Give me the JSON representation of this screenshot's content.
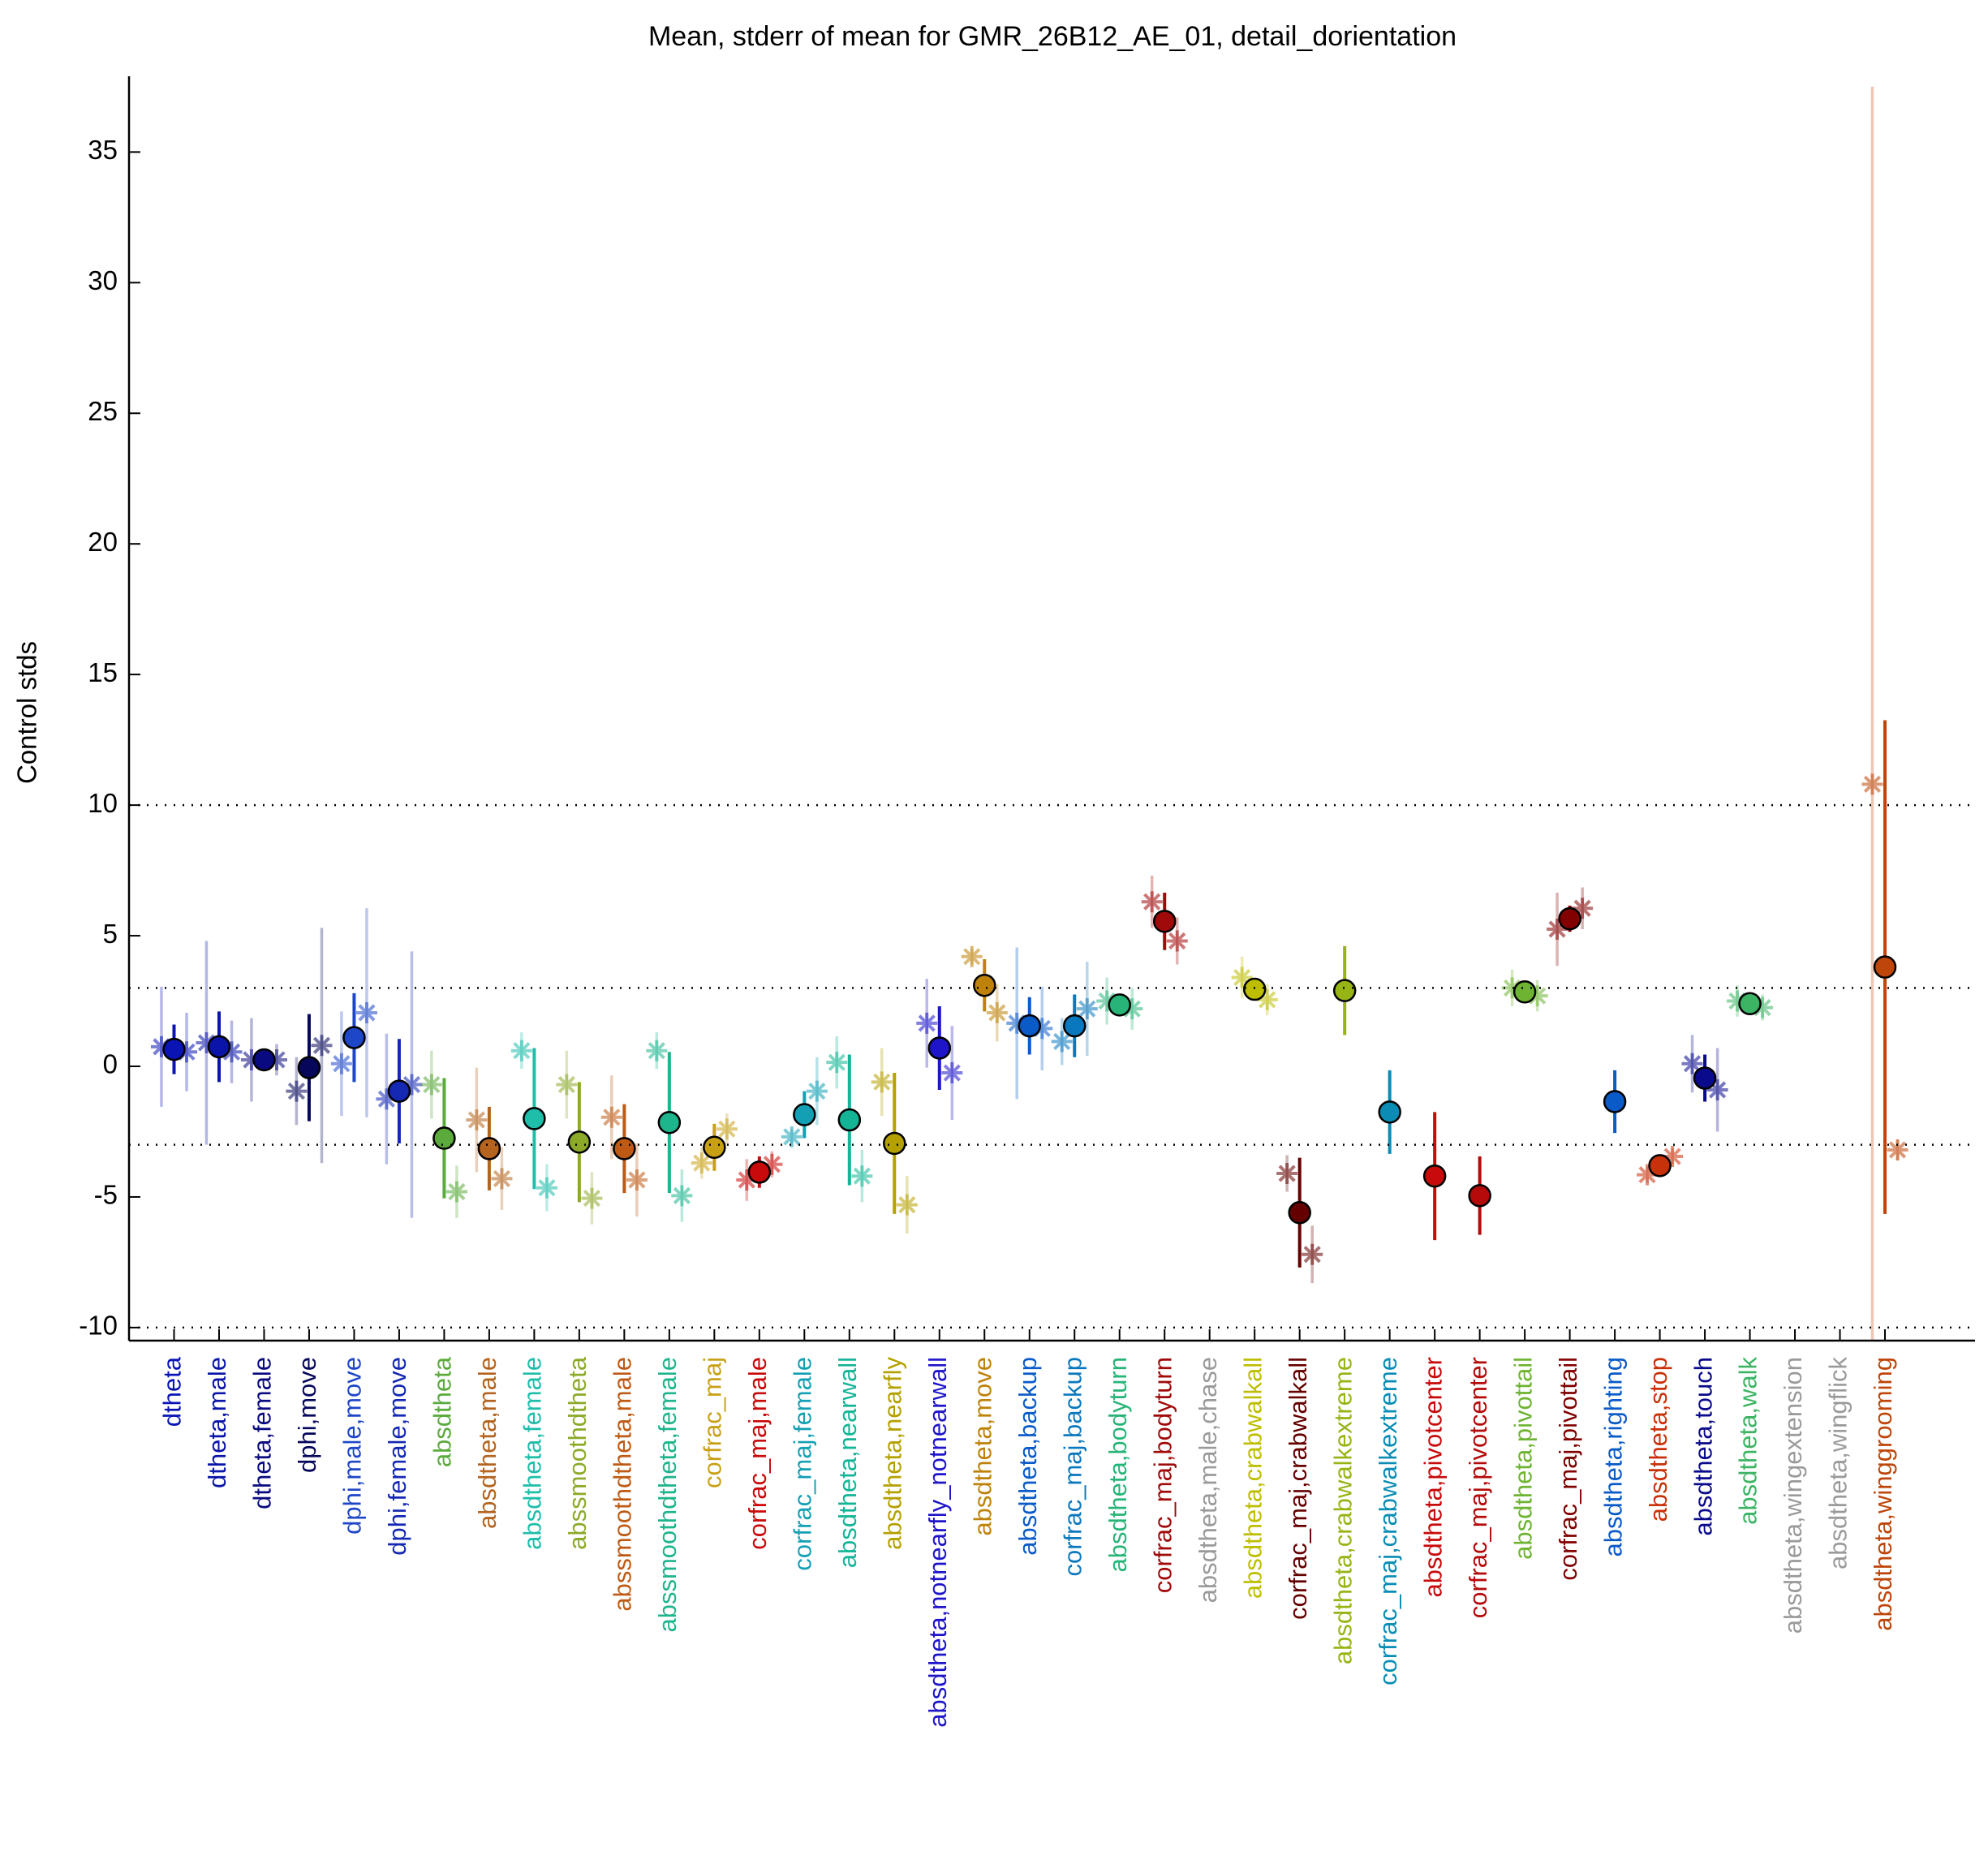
{
  "chart_data": {
    "type": "errorbar",
    "title": "Mean, stderr of mean for GMR_26B12_AE_01, detail_dorientation",
    "y_label": "Control stds",
    "categories": [
      "dtheta",
      "dtheta,male",
      "dtheta,female",
      "dphi,move",
      "dphi,male,move",
      "dphi,female,move",
      "absdtheta",
      "absdtheta,male",
      "absdtheta,female",
      "abssmoothdtheta",
      "abssmoothdtheta,male",
      "abssmoothdtheta,female",
      "corfrac_maj",
      "corfrac_maj,male",
      "corfrac_maj,female",
      "absdtheta,nearwall",
      "absdtheta,nearfly",
      "absdtheta,notnearfly_notnearwall",
      "absdtheta,move",
      "absdtheta,backup",
      "corfrac_maj,backup",
      "absdtheta,bodyturn",
      "corfrac_maj,bodyturn",
      "absdtheta,male,chase",
      "absdtheta,crabwalkall",
      "corfrac_maj,crabwalkall",
      "absdtheta,crabwalkextreme",
      "corfrac_maj,crabwalkextreme",
      "absdtheta,pivotcenter",
      "corfrac_maj,pivotcenter",
      "absdtheta,pivottail",
      "corfrac_maj,pivottail",
      "absdtheta,righting",
      "absdtheta,stop",
      "absdtheta,touch",
      "absdtheta,walk",
      "absdtheta,wingextension",
      "absdtheta,wingflick",
      "absdtheta,winggrooming"
    ],
    "colors": [
      "#0a14b4",
      "#0a14a8",
      "#0a0a80",
      "#06065a",
      "#1e46c8",
      "#1428b4",
      "#5aaa3c",
      "#b4641e",
      "#1ebeaa",
      "#8caa28",
      "#be5a14",
      "#1eb48c",
      "#c8a014",
      "#c80a0a",
      "#14a0b4",
      "#14b496",
      "#b4a000",
      "#1e14c8",
      "#be820a",
      "#0a5ac8",
      "#0a78be",
      "#28b478",
      "#a00a0a",
      "#9a9a9a",
      "#bebe00",
      "#640000",
      "#96b414",
      "#0a8cb4",
      "#c80a0a",
      "#b40a0a",
      "#6eb432",
      "#820000",
      "#0a5ac8",
      "#c8320a",
      "#0a0a8c",
      "#3cb464",
      "#9a9a9a",
      "#9a9a9a",
      "#be460a"
    ],
    "values": [
      0.65,
      0.75,
      0.25,
      -0.05,
      1.1,
      -0.95,
      -2.75,
      -3.15,
      -2.0,
      -2.9,
      -3.15,
      -2.15,
      -3.1,
      -4.05,
      -1.85,
      -2.05,
      -2.95,
      0.7,
      3.1,
      1.55,
      1.55,
      2.35,
      5.55,
      null,
      2.95,
      -5.6,
      2.9,
      -1.75,
      -4.2,
      -4.95,
      2.85,
      5.65,
      -1.35,
      -3.8,
      -0.45,
      2.4,
      null,
      null,
      3.8
    ],
    "errors": [
      0.95,
      1.35,
      0.35,
      2.05,
      1.7,
      2.0,
      2.3,
      1.6,
      2.7,
      2.3,
      1.7,
      2.7,
      0.9,
      0.6,
      0.9,
      2.5,
      2.7,
      1.6,
      1.0,
      1.1,
      1.2,
      0.3,
      1.1,
      null,
      0.3,
      2.1,
      1.7,
      1.6,
      2.45,
      1.5,
      0.3,
      0.5,
      1.2,
      0.4,
      0.9,
      0.2,
      null,
      null,
      9.45
    ],
    "left_values": [
      0.75,
      0.9,
      0.25,
      -0.95,
      0.1,
      -1.25,
      -0.7,
      -2.05,
      0.6,
      -0.7,
      -1.95,
      0.6,
      -3.7,
      -4.35,
      -2.7,
      0.15,
      -0.6,
      1.65,
      4.2,
      1.65,
      0.95,
      2.5,
      6.3,
      null,
      3.4,
      -4.1,
      null,
      null,
      null,
      null,
      3.0,
      5.25,
      null,
      -4.15,
      0.1,
      2.5,
      null,
      null,
      10.8
    ],
    "left_errors": [
      2.3,
      3.9,
      1.6,
      1.3,
      2.0,
      2.5,
      1.3,
      2.0,
      0.7,
      1.3,
      1.6,
      0.7,
      0.6,
      0.8,
      0.3,
      1.0,
      1.3,
      1.7,
      0.3,
      2.9,
      0.9,
      0.9,
      1.0,
      null,
      0.8,
      0.7,
      null,
      null,
      null,
      null,
      0.7,
      1.4,
      null,
      0.3,
      1.1,
      0.6,
      null,
      null,
      26.7
    ],
    "right_values": [
      0.55,
      0.55,
      0.25,
      0.8,
      2.05,
      -0.7,
      -4.8,
      -4.3,
      -4.65,
      -5.05,
      -4.35,
      -4.95,
      -2.4,
      -3.75,
      -0.95,
      -4.2,
      -5.3,
      -0.25,
      2.05,
      1.45,
      2.2,
      2.2,
      4.8,
      null,
      2.55,
      -7.2,
      null,
      null,
      null,
      null,
      2.7,
      6.05,
      null,
      -3.45,
      -0.9,
      2.25,
      null,
      null,
      -3.2
    ],
    "right_errors": [
      1.5,
      1.2,
      0.6,
      4.5,
      4.0,
      5.1,
      1.0,
      1.2,
      0.9,
      1.0,
      1.4,
      1.0,
      0.6,
      0.5,
      1.3,
      1.0,
      1.1,
      1.8,
      1.1,
      1.6,
      1.8,
      0.8,
      0.9,
      null,
      0.6,
      1.1,
      null,
      null,
      null,
      null,
      0.6,
      0.8,
      null,
      0.3,
      1.6,
      0.5,
      null,
      null,
      0.4
    ],
    "xlim": [
      0,
      41
    ],
    "ylim": [
      -10.5,
      37.9
    ],
    "yticks": [
      -10,
      -5,
      0,
      5,
      10,
      15,
      20,
      25,
      30,
      35
    ],
    "reference_lines": [
      -10,
      -3,
      3,
      10
    ]
  }
}
